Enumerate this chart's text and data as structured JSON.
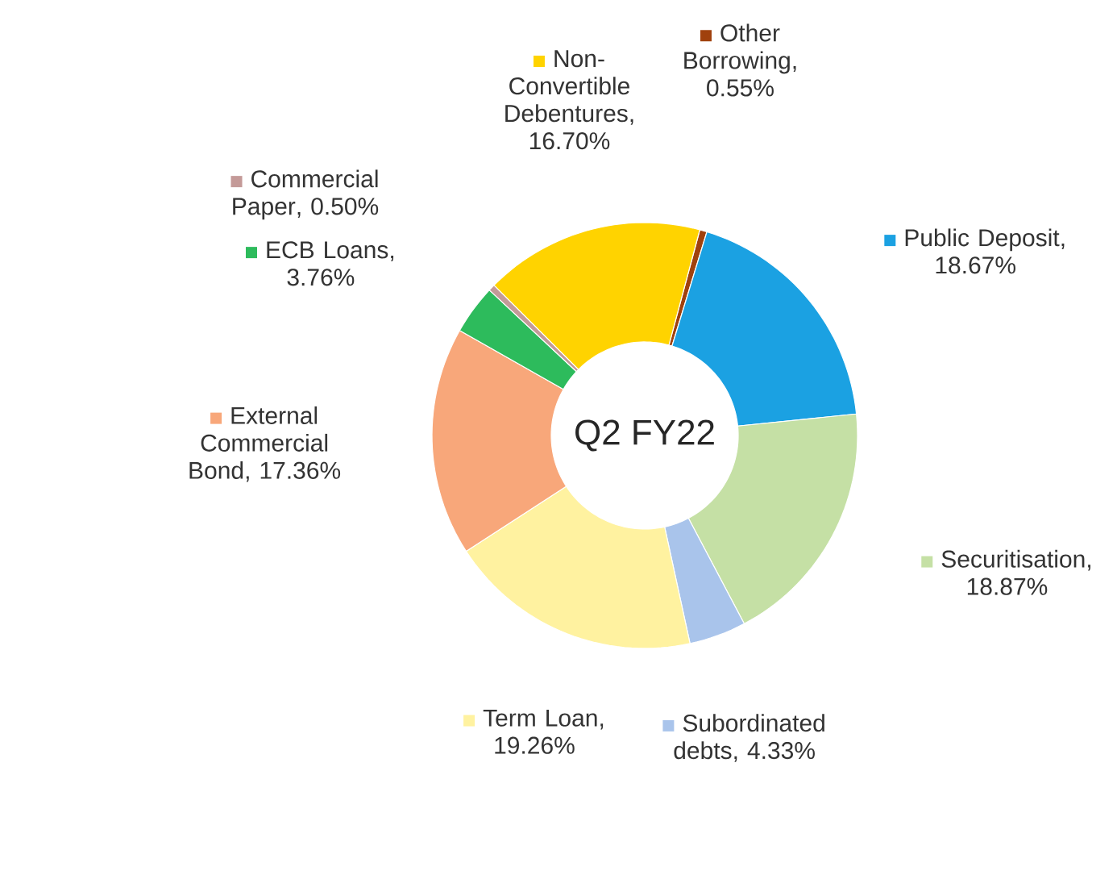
{
  "chart_data": {
    "type": "donut",
    "title": "Q2 FY22",
    "legend": "right",
    "categories": [
      "Other Borrowing",
      "Public Deposit",
      "Securitisation",
      "Subordinated debts",
      "Term Loan",
      "External Commercial Bond",
      "ECB Loans",
      "Commercial Paper",
      "Non-Convertible Debentures"
    ],
    "values": [
      0.55,
      18.67,
      18.87,
      4.33,
      19.26,
      17.36,
      3.76,
      0.5,
      16.7
    ],
    "value_labels": [
      ", 0.55%",
      ", 18.67%",
      ", 18.87%",
      ", 4.33%",
      ", 19.26%",
      ", 17.36%",
      ", 3.76%",
      ", 0.50%",
      ", 16.70%"
    ],
    "colors": [
      "#a0410d",
      "#1ba1e2",
      "#c5e0a5",
      "#a9c4eb",
      "#fff2a0",
      "#f8a77a",
      "#2dbb5c",
      "#c49a98",
      "#ffd300"
    ]
  }
}
